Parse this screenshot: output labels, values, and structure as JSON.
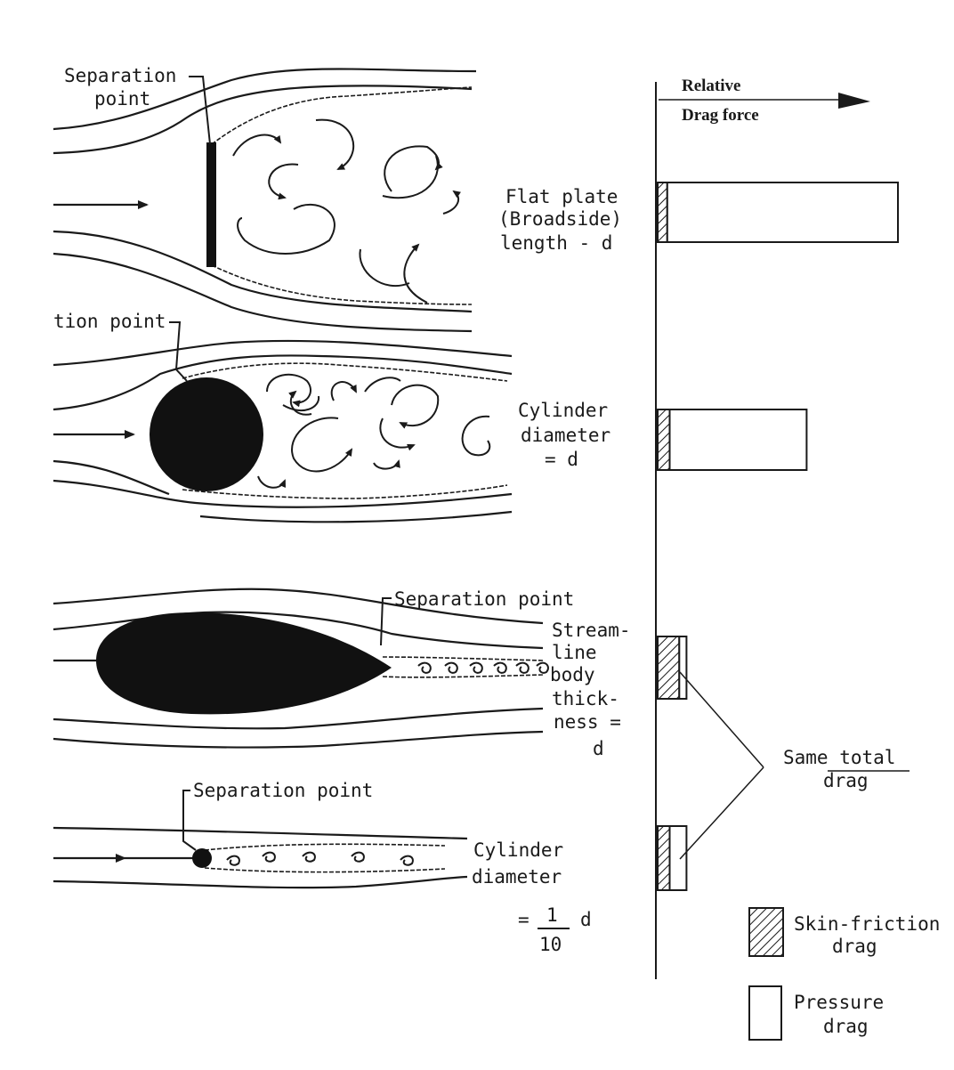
{
  "header": {
    "relative": "Relative",
    "drag_force": "Drag force"
  },
  "labels": {
    "separation_point_top_1": "Separation",
    "separation_point_top_2": "point",
    "separation_point_cyl": "tion point",
    "separation_point_stream": "Separation point",
    "separation_point_small": "Separation point"
  },
  "bodies": [
    {
      "id": "flat-plate",
      "lines": [
        "Flat plate",
        "(Broadside)",
        "length - d"
      ]
    },
    {
      "id": "cylinder",
      "lines": [
        "Cylinder",
        "diameter",
        "= d"
      ]
    },
    {
      "id": "streamline-body",
      "lines": [
        "Stream-",
        "line",
        "body",
        "thick-",
        "ness =",
        "d"
      ]
    },
    {
      "id": "small-cylinder",
      "lines": [
        "Cylinder",
        "diameter"
      ],
      "fraction": {
        "prefix": "=",
        "numerator": "1",
        "denominator": "10",
        "suffix": "d"
      }
    }
  ],
  "chart_data": {
    "type": "bar",
    "stacked": true,
    "orientation": "horizontal",
    "categories": [
      "Flat plate",
      "Cylinder",
      "Streamline body",
      "Small cylinder"
    ],
    "series": [
      {
        "name": "Skin-friction drag",
        "values": [
          0.04,
          0.05,
          0.09,
          0.05
        ]
      },
      {
        "name": "Pressure drag",
        "values": [
          0.96,
          0.57,
          0.03,
          0.07
        ]
      }
    ]
  },
  "annotation": {
    "same_total_1": "Same total",
    "same_total_2": "drag"
  },
  "legend": [
    {
      "key": "skin",
      "lines": [
        "Skin-friction",
        "drag"
      ]
    },
    {
      "key": "pressure",
      "lines": [
        "Pressure",
        "drag"
      ]
    }
  ]
}
